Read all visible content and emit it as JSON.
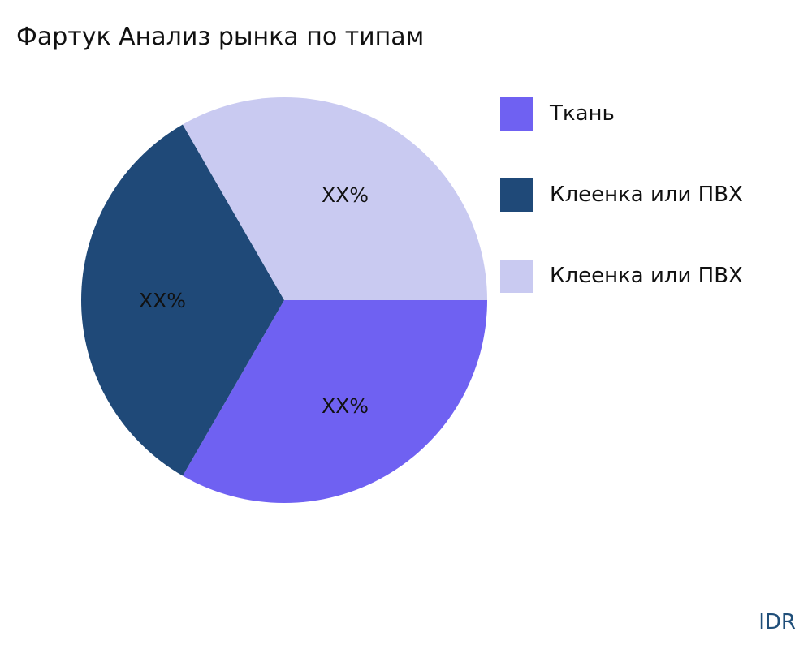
{
  "chart_data": {
    "type": "pie",
    "title": "Фартук Анализ рынка по типам",
    "start_angle": "3 o'clock, clockwise",
    "slices": [
      {
        "name": "Ткань",
        "value": 33.33,
        "label": "XX%",
        "color": "#6f61f2"
      },
      {
        "name": "Клеенка или ПВХ",
        "value": 33.33,
        "label": "XX%",
        "color": "#1f4978"
      },
      {
        "name": "Клеенка или ПВХ",
        "value": 33.33,
        "label": "XX%",
        "color": "#c9caf1"
      }
    ],
    "legend_position": "right"
  },
  "brand": "IDR"
}
